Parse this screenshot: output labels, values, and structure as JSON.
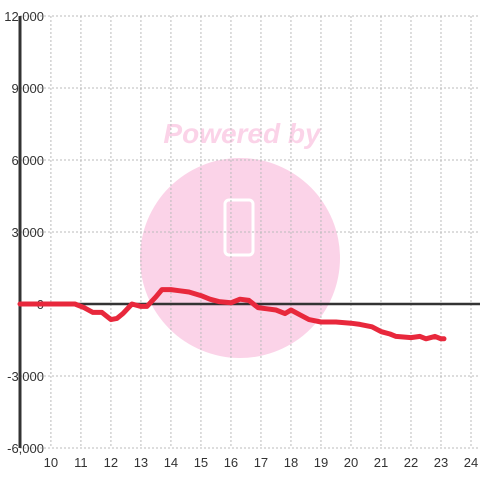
{
  "chart_data": {
    "type": "line",
    "watermark": "Powered by",
    "x": [
      8.97,
      10.8,
      11.1,
      11.4,
      11.7,
      12.0,
      12.2,
      12.4,
      12.7,
      13.0,
      13.2,
      13.5,
      13.7,
      14.0,
      14.3,
      14.6,
      15.0,
      15.3,
      15.6,
      16.0,
      16.3,
      16.6,
      16.9,
      17.2,
      17.5,
      17.8,
      18.0,
      18.3,
      18.6,
      19.0,
      19.5,
      20.0,
      20.3,
      20.7,
      21.0,
      21.3,
      21.5,
      22.0,
      22.3,
      22.5,
      22.8,
      23.0,
      23.1
    ],
    "series": [
      {
        "color": "#e8283c",
        "values": [
          0,
          0,
          -150,
          -350,
          -350,
          -650,
          -600,
          -400,
          0,
          -100,
          -100,
          300,
          600,
          600,
          550,
          500,
          350,
          200,
          100,
          50,
          200,
          150,
          -150,
          -200,
          -250,
          -400,
          -250,
          -450,
          -650,
          -750,
          -750,
          -800,
          -850,
          -950,
          -1150,
          -1250,
          -1350,
          -1400,
          -1350,
          -1450,
          -1350,
          -1450,
          -1450
        ]
      }
    ],
    "xlim": [
      8.97,
      24.3
    ],
    "xticks": [
      10,
      11,
      12,
      13,
      14,
      15,
      16,
      17,
      18,
      19,
      20,
      21,
      22,
      23,
      24
    ],
    "ylim": [
      -6000,
      12000
    ],
    "yticks": [
      {
        "value": -6000,
        "label": "-6,000"
      },
      {
        "value": -3000,
        "label": "-3,000"
      },
      0,
      {
        "value": 3000,
        "label": "3,000"
      },
      {
        "value": 6000,
        "label": "6,000"
      },
      {
        "value": 9000,
        "label": "9,000"
      },
      {
        "value": 12000,
        "label": "12,000"
      }
    ],
    "grid": true
  }
}
